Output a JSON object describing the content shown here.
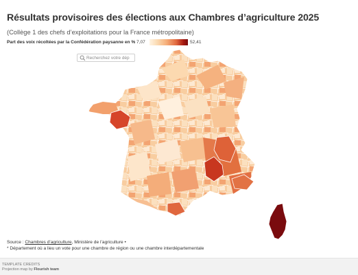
{
  "title": "Résultats provisoires des élections aux Chambres d’agriculture 2025",
  "subtitle": "(Collège 1 des chefs d’exploitations pour la France métropolitaine)",
  "legend": {
    "label": "Part des voix récoltées par la Confédération paysanne en %",
    "min": "7,07",
    "max": "52,41",
    "scale_colors": [
      "#fff3e3",
      "#fbdbb3",
      "#f5ad78",
      "#e0673e",
      "#a81b12",
      "#7a0b0e"
    ]
  },
  "search": {
    "placeholder": "Recherchez votre dép"
  },
  "map": {
    "border_color": "#ffffff",
    "highlighted_regions": [
      {
        "name": "Loire-Atlantique",
        "color": "#d6452a",
        "label": ""
      },
      {
        "name": "Lozère / Gard / Aveyron",
        "color": "#c8371f",
        "label": ""
      },
      {
        "name": "Drôme / Isère / Hautes-Alpes",
        "color": "#e27244",
        "label": ""
      },
      {
        "name": "Corse",
        "color": "#7a0b0e",
        "label": ""
      },
      {
        "name": "Pyrénées-Orientales",
        "color": "#e27244",
        "label": ""
      },
      {
        "name": "Var / Alpes-Maritimes",
        "color": "#e27244",
        "label": ""
      }
    ]
  },
  "footer": {
    "source_prefix": "Source : ",
    "source_link": "Chambres d’agriculture",
    "source_rest": ", Ministère de l’agriculture •",
    "note": "* Département où a lieu un vote pour une chambre de région ou une chambre interdépartementale"
  },
  "credits": {
    "line1": "TEMPLATE CREDITS",
    "line2_prefix": "Projection map by ",
    "line2_name": "Flourish team"
  }
}
